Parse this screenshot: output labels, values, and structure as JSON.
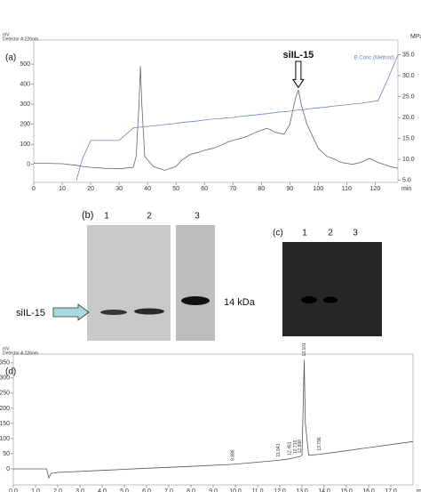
{
  "chart_data": [
    {
      "type": "line",
      "panel": "(a)",
      "y_unit": "mV",
      "detector": "Detector A:226nm",
      "y2_unit": "MPa",
      "x_unit": "min",
      "annotation": {
        "text": "siIL-15",
        "x": 93
      },
      "x": [
        0,
        5,
        10,
        15,
        17,
        20,
        25,
        30,
        35,
        36,
        37,
        37.5,
        38,
        39,
        42,
        46,
        50,
        52,
        55,
        58,
        60,
        63,
        65,
        68,
        70,
        73,
        75,
        78,
        80,
        82,
        85,
        88,
        90,
        92,
        93,
        94,
        96,
        100,
        103,
        105,
        108,
        112,
        115,
        118,
        121,
        125,
        128
      ],
      "xlim": [
        0,
        128
      ],
      "xticks": [
        0,
        10,
        20,
        30,
        40,
        50,
        60,
        70,
        80,
        90,
        100,
        110,
        120
      ],
      "ylim": [
        -90,
        620
      ],
      "yticks": [
        0,
        100,
        200,
        300,
        400,
        500
      ],
      "y2lim": [
        4.5,
        38.5
      ],
      "y2ticks": [
        {
          "value": 5,
          "label": "5.0"
        },
        {
          "value": 10,
          "label": "10.0"
        },
        {
          "value": 15,
          "label": "15.0"
        },
        {
          "value": 20,
          "label": "20.0"
        },
        {
          "value": 25,
          "label": "25.0"
        },
        {
          "value": 30,
          "label": "30.0"
        },
        {
          "value": 35,
          "label": "35.0"
        }
      ],
      "series": [
        {
          "color": "#666666",
          "values": [
            5,
            5,
            3,
            -5,
            -10,
            -15,
            -20,
            -22,
            -15,
            40,
            300,
            490,
            300,
            40,
            -10,
            -30,
            -10,
            20,
            50,
            60,
            70,
            80,
            90,
            110,
            120,
            130,
            140,
            160,
            170,
            180,
            160,
            150,
            200,
            330,
            370,
            300,
            200,
            80,
            40,
            30,
            10,
            0,
            10,
            30,
            10,
            -10,
            -20
          ]
        },
        {
          "name": "B.Conc.(Method)",
          "color": "#7080c0",
          "axis": "y2",
          "values": [
            null,
            null,
            null,
            5,
            10,
            14.5,
            14.5,
            14.5,
            17.5,
            17.6,
            17.7,
            17.7,
            17.7,
            17.8,
            18,
            18.3,
            18.6,
            18.8,
            19,
            19.2,
            19.4,
            19.6,
            19.7,
            19.9,
            20,
            20.3,
            20.4,
            20.6,
            20.8,
            20.9,
            21.2,
            21.4,
            21.5,
            21.7,
            21.8,
            21.8,
            22,
            22.3,
            22.5,
            22.7,
            22.9,
            23.2,
            23.4,
            23.7,
            24,
            30,
            35
          ]
        }
      ]
    },
    {
      "type": "line",
      "panel": "(d)",
      "y_unit": "mV",
      "detector": "Detector A:226nm",
      "x_unit": "min",
      "x": [
        0,
        1.5,
        1.6,
        1.7,
        2,
        4,
        6,
        8,
        9.886,
        11,
        11.941,
        12.451,
        12.716,
        12.898,
        13.0,
        13.05,
        13.101,
        13.15,
        13.3,
        13.796,
        14.5,
        16,
        18
      ],
      "xlim": [
        0,
        18
      ],
      "xticks": [
        {
          "value": 0,
          "label": "0.0"
        },
        {
          "value": 1,
          "label": "1.0"
        },
        {
          "value": 2,
          "label": "2.0"
        },
        {
          "value": 3,
          "label": "3.0"
        },
        {
          "value": 4,
          "label": "4.0"
        },
        {
          "value": 5,
          "label": "5.0"
        },
        {
          "value": 6,
          "label": "6.0"
        },
        {
          "value": 7,
          "label": "7.0"
        },
        {
          "value": 8,
          "label": "8.0"
        },
        {
          "value": 9,
          "label": "9.0"
        },
        {
          "value": 10,
          "label": "10.0"
        },
        {
          "value": 11,
          "label": "11.0"
        },
        {
          "value": 12,
          "label": "12.0"
        },
        {
          "value": 13,
          "label": "13.0"
        },
        {
          "value": 14,
          "label": "14.0"
        },
        {
          "value": 15,
          "label": "15.0"
        },
        {
          "value": 16,
          "label": "16.0"
        },
        {
          "value": 17,
          "label": "17.0"
        }
      ],
      "ylim": [
        -53,
        379
      ],
      "yticks": [
        0,
        50,
        100,
        150,
        200,
        250,
        300,
        350
      ],
      "peaks": [
        9.886,
        11.941,
        12.451,
        12.716,
        12.898,
        13.101,
        13.796
      ],
      "series": [
        {
          "color": "#555555",
          "values": [
            0,
            0,
            -30,
            -15,
            -12,
            -5,
            2,
            8,
            15,
            22,
            28,
            33,
            38,
            40,
            45,
            200,
            360,
            150,
            45,
            48,
            55,
            70,
            90
          ]
        }
      ]
    }
  ],
  "gels": {
    "panel_b": {
      "label": "(b)",
      "lanes": [
        "1",
        "2",
        "3"
      ],
      "marker": "14 kDa",
      "band_label": "siIL-15"
    },
    "panel_c": {
      "label": "(c)",
      "lanes": [
        "1",
        "2",
        "3"
      ]
    }
  }
}
